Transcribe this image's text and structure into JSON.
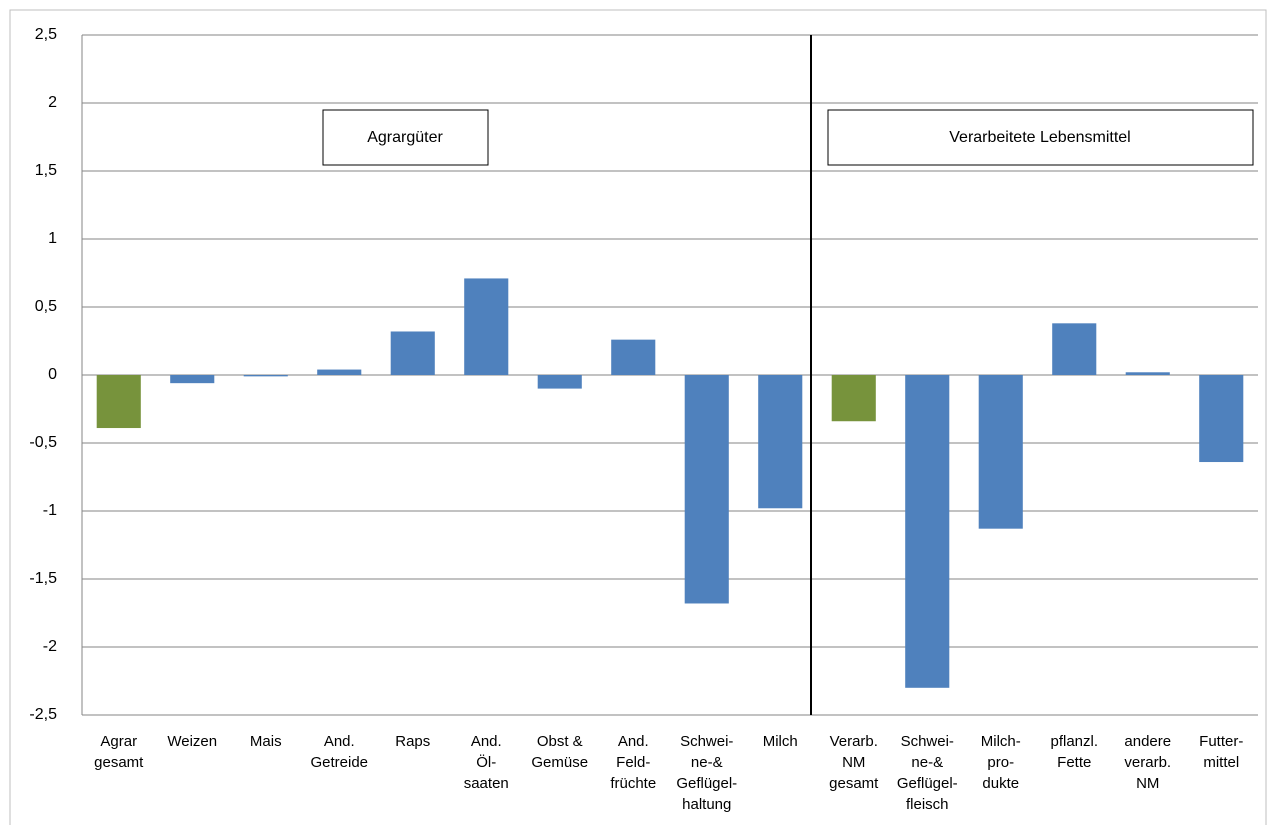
{
  "chart_data": {
    "type": "bar",
    "categories": [
      [
        "Agrar",
        "gesamt"
      ],
      [
        "Weizen"
      ],
      [
        "Mais"
      ],
      [
        "And.",
        "Getreide"
      ],
      [
        "Raps"
      ],
      [
        "And.",
        "Öl-",
        "saaten"
      ],
      [
        "Obst &",
        "Gemüse"
      ],
      [
        "And.",
        "Feld-",
        "früchte"
      ],
      [
        "Schwei-",
        "ne-&",
        "Geflügel-",
        "haltung"
      ],
      [
        "Milch"
      ],
      [
        "Verarb.",
        "NM",
        "gesamt"
      ],
      [
        "Schwei-",
        "ne-&",
        "Geflügel-",
        "fleisch"
      ],
      [
        "Milch-",
        "pro-",
        "dukte"
      ],
      [
        "pflanzl.",
        "Fette"
      ],
      [
        "andere",
        "verarb.",
        "NM"
      ],
      [
        "Futter-",
        "mittel"
      ]
    ],
    "values": [
      -0.39,
      -0.06,
      -0.01,
      0.04,
      0.32,
      0.71,
      -0.1,
      0.26,
      -1.68,
      -0.98,
      -0.34,
      -2.3,
      -1.13,
      0.38,
      0.02,
      -0.64
    ],
    "colors": [
      "#77933c",
      "#4f81bd",
      "#4f81bd",
      "#4f81bd",
      "#4f81bd",
      "#4f81bd",
      "#4f81bd",
      "#4f81bd",
      "#4f81bd",
      "#4f81bd",
      "#77933c",
      "#4f81bd",
      "#4f81bd",
      "#4f81bd",
      "#4f81bd",
      "#4f81bd"
    ],
    "ylim": [
      -2.5,
      2.5
    ],
    "yticks": [
      {
        "value": -2.5,
        "label": "-2,5"
      },
      -2,
      {
        "value": -1.5,
        "label": "-1,5"
      },
      -1,
      {
        "value": -0.5,
        "label": "-0,5"
      },
      0,
      {
        "value": 0.5,
        "label": "0,5"
      },
      1,
      {
        "value": 1.5,
        "label": "1,5"
      },
      2,
      {
        "value": 2.5,
        "label": "2,5"
      }
    ],
    "grid": true,
    "annotations": [
      "Agrargüter",
      "Verarbeitete Lebensmittel"
    ]
  }
}
